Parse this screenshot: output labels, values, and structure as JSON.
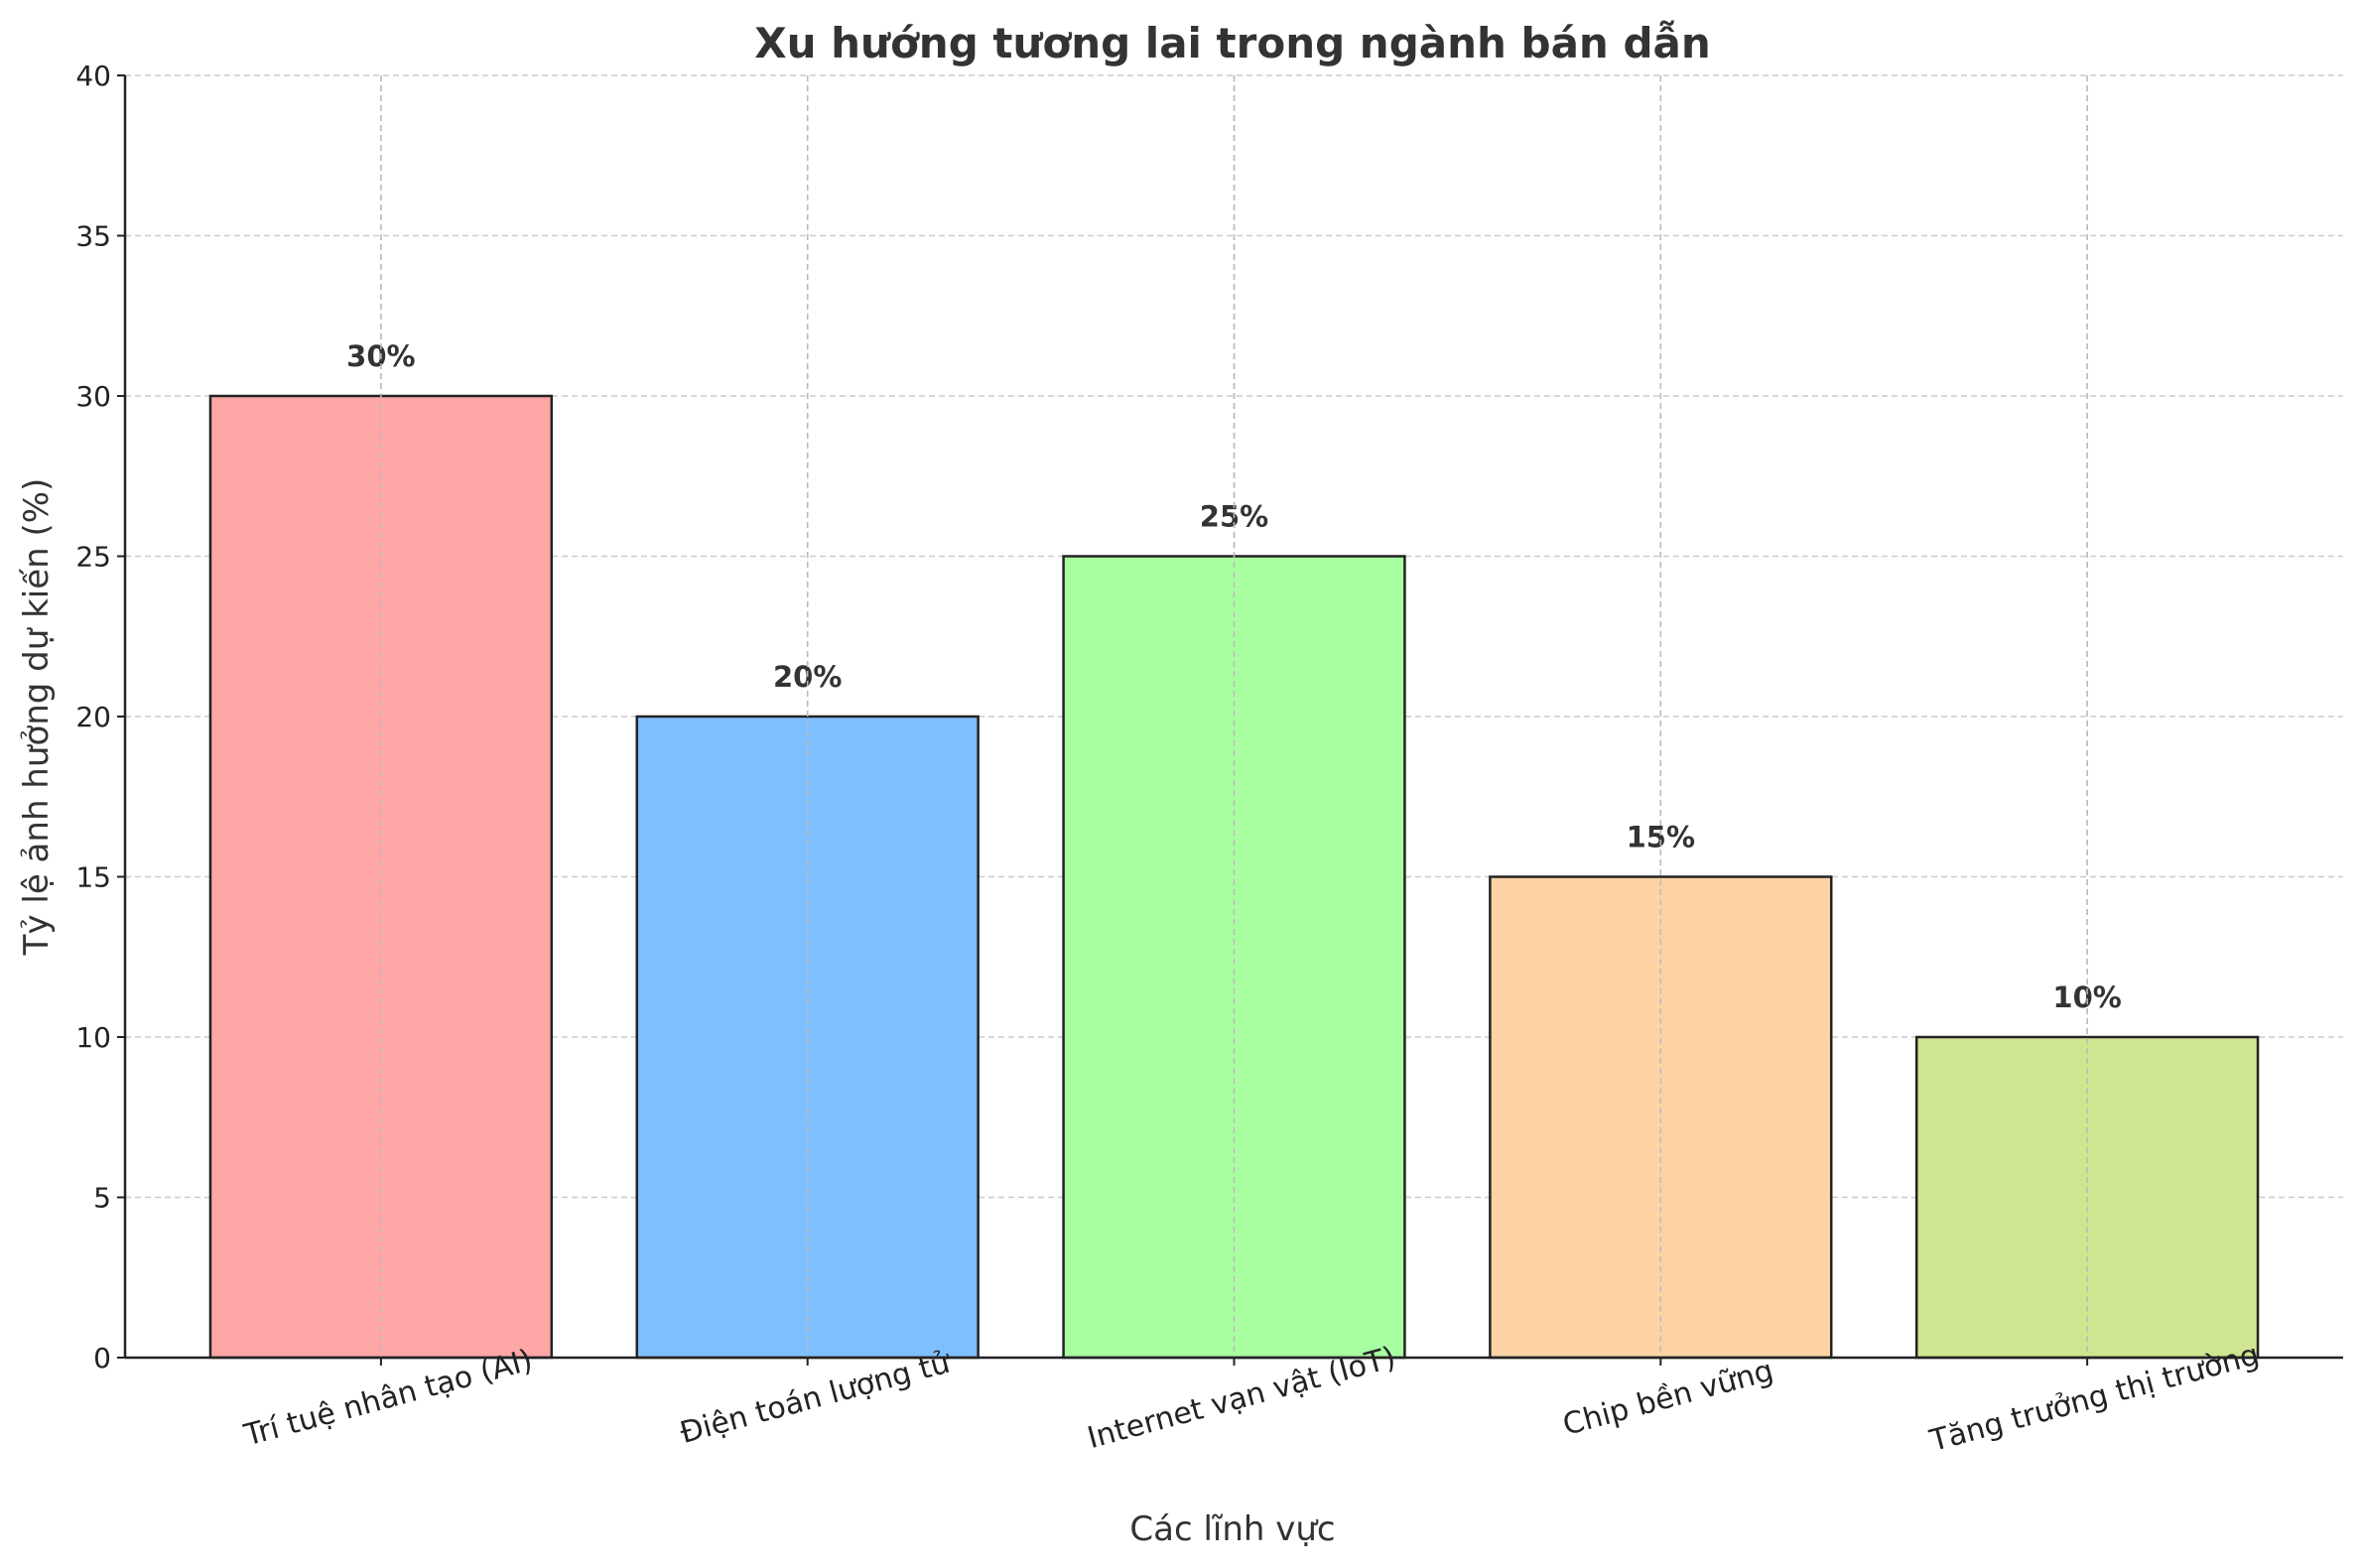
{
  "chart_data": {
    "type": "bar",
    "title": "Xu hướng tương lai trong ngành bán dẫn",
    "xlabel": "Các lĩnh vực",
    "ylabel": "Tỷ lệ ảnh hưởng dự kiến (%)",
    "categories": [
      "Trí tuệ nhân tạo (AI)",
      "Điện toán lượng tử",
      "Internet vạn vật (IoT)",
      "Chip bền vững",
      "Tăng trưởng thị trường"
    ],
    "values": [
      30,
      20,
      25,
      15,
      10
    ],
    "data_labels": [
      "30%",
      "20%",
      "25%",
      "15%",
      "10%"
    ],
    "colors": [
      "#ffa6a6",
      "#7fbfff",
      "#a8ffa2",
      "#fdd3a6",
      "#cfe590"
    ],
    "ylim": [
      0,
      40
    ],
    "yticks": [
      "0",
      "5",
      "10",
      "15",
      "20",
      "25",
      "30",
      "35",
      "40"
    ],
    "grid": true,
    "xtick_rotation_deg": 15
  }
}
